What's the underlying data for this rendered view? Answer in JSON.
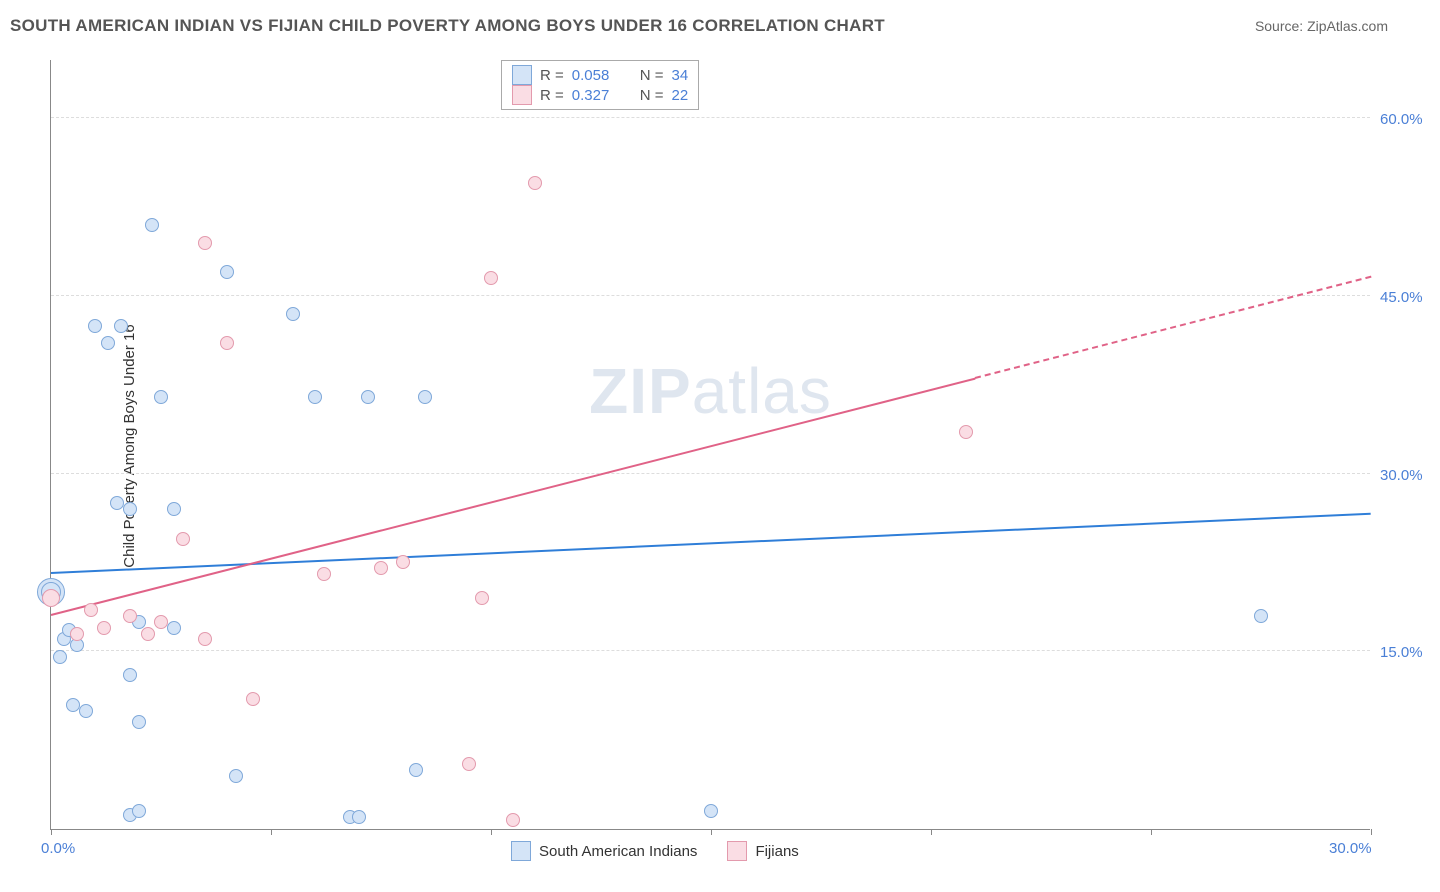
{
  "title": "SOUTH AMERICAN INDIAN VS FIJIAN CHILD POVERTY AMONG BOYS UNDER 16 CORRELATION CHART",
  "source_label": "Source: ",
  "source_name": "ZipAtlas.com",
  "ylabel": "Child Poverty Among Boys Under 16",
  "watermark": "ZIPatlas",
  "chart": {
    "type": "scatter",
    "xlim": [
      0,
      30
    ],
    "ylim": [
      0,
      65
    ],
    "x_ticks": [
      0,
      5,
      10,
      15,
      20,
      25,
      30
    ],
    "x_tick_labels": {
      "0": "0.0%",
      "30": "30.0%"
    },
    "y_gridlines": [
      15,
      30,
      45,
      60
    ],
    "y_tick_labels": {
      "15": "15.0%",
      "30": "30.0%",
      "45": "45.0%",
      "60": "60.0%"
    },
    "background_color": "#ffffff",
    "grid_color": "#dddddd",
    "axis_color": "#888888",
    "axis_label_color": "#4a7fd6"
  },
  "series": [
    {
      "name": "South American Indians",
      "key": "sai",
      "fill": "#d4e4f7",
      "stroke": "#7fa8d9",
      "line_color": "#2f7ed8",
      "R": "0.058",
      "N": "34",
      "trend": {
        "x1": 0,
        "y1": 21.5,
        "x2": 30,
        "y2": 26.5
      },
      "points": [
        {
          "x": 0.0,
          "y": 20.0,
          "r": 14
        },
        {
          "x": 0.0,
          "y": 20.0,
          "r": 10
        },
        {
          "x": 0.2,
          "y": 14.5,
          "r": 7
        },
        {
          "x": 0.3,
          "y": 16.0,
          "r": 7
        },
        {
          "x": 0.4,
          "y": 16.8,
          "r": 7
        },
        {
          "x": 0.5,
          "y": 10.5,
          "r": 7
        },
        {
          "x": 0.6,
          "y": 15.5,
          "r": 7
        },
        {
          "x": 0.8,
          "y": 10.0,
          "r": 7
        },
        {
          "x": 1.0,
          "y": 42.5,
          "r": 7
        },
        {
          "x": 1.3,
          "y": 41.0,
          "r": 7
        },
        {
          "x": 1.5,
          "y": 27.5,
          "r": 7
        },
        {
          "x": 1.6,
          "y": 42.5,
          "r": 7
        },
        {
          "x": 1.8,
          "y": 13.0,
          "r": 7
        },
        {
          "x": 1.8,
          "y": 27.0,
          "r": 7
        },
        {
          "x": 1.8,
          "y": 1.2,
          "r": 7
        },
        {
          "x": 2.0,
          "y": 1.5,
          "r": 7
        },
        {
          "x": 2.0,
          "y": 17.5,
          "r": 7
        },
        {
          "x": 2.0,
          "y": 9.0,
          "r": 7
        },
        {
          "x": 2.3,
          "y": 51.0,
          "r": 7
        },
        {
          "x": 2.5,
          "y": 36.5,
          "r": 7
        },
        {
          "x": 2.8,
          "y": 27.0,
          "r": 7
        },
        {
          "x": 2.8,
          "y": 17.0,
          "r": 7
        },
        {
          "x": 4.0,
          "y": 47.0,
          "r": 7
        },
        {
          "x": 4.2,
          "y": 4.5,
          "r": 7
        },
        {
          "x": 5.5,
          "y": 43.5,
          "r": 7
        },
        {
          "x": 6.0,
          "y": 36.5,
          "r": 7
        },
        {
          "x": 6.8,
          "y": 1.0,
          "r": 7
        },
        {
          "x": 7.0,
          "y": 1.0,
          "r": 7
        },
        {
          "x": 7.2,
          "y": 36.5,
          "r": 7
        },
        {
          "x": 8.5,
          "y": 36.5,
          "r": 7
        },
        {
          "x": 8.3,
          "y": 5.0,
          "r": 7
        },
        {
          "x": 15.0,
          "y": 1.5,
          "r": 7
        },
        {
          "x": 27.5,
          "y": 18.0,
          "r": 7
        }
      ]
    },
    {
      "name": "Fijians",
      "key": "fij",
      "fill": "#fadde4",
      "stroke": "#e39aad",
      "line_color": "#e06287",
      "R": "0.327",
      "N": "22",
      "trend": {
        "x1": 0,
        "y1": 18.0,
        "x2": 30,
        "y2": 46.5
      },
      "trend_solid_until_x": 21.0,
      "points": [
        {
          "x": 0.0,
          "y": 19.5,
          "r": 9
        },
        {
          "x": 0.6,
          "y": 16.5,
          "r": 7
        },
        {
          "x": 0.9,
          "y": 18.5,
          "r": 7
        },
        {
          "x": 1.2,
          "y": 17.0,
          "r": 7
        },
        {
          "x": 1.8,
          "y": 18.0,
          "r": 7
        },
        {
          "x": 2.2,
          "y": 16.5,
          "r": 7
        },
        {
          "x": 2.5,
          "y": 17.5,
          "r": 7
        },
        {
          "x": 3.0,
          "y": 24.5,
          "r": 7
        },
        {
          "x": 3.5,
          "y": 16.0,
          "r": 7
        },
        {
          "x": 3.5,
          "y": 49.5,
          "r": 7
        },
        {
          "x": 4.0,
          "y": 41.0,
          "r": 7
        },
        {
          "x": 4.6,
          "y": 11.0,
          "r": 7
        },
        {
          "x": 6.2,
          "y": 21.5,
          "r": 7
        },
        {
          "x": 7.5,
          "y": 22.0,
          "r": 7
        },
        {
          "x": 8.0,
          "y": 22.5,
          "r": 7
        },
        {
          "x": 9.5,
          "y": 5.5,
          "r": 7
        },
        {
          "x": 9.8,
          "y": 19.5,
          "r": 7
        },
        {
          "x": 10.0,
          "y": 46.5,
          "r": 7
        },
        {
          "x": 10.5,
          "y": 0.8,
          "r": 7
        },
        {
          "x": 11.0,
          "y": 54.5,
          "r": 7
        },
        {
          "x": 20.8,
          "y": 33.5,
          "r": 7
        }
      ]
    }
  ],
  "stats_labels": {
    "R": "R =",
    "N": "N ="
  },
  "legend_items": [
    {
      "label": "South American Indians",
      "fill": "#d4e4f7",
      "stroke": "#7fa8d9"
    },
    {
      "label": "Fijians",
      "fill": "#fadde4",
      "stroke": "#e39aad"
    }
  ]
}
